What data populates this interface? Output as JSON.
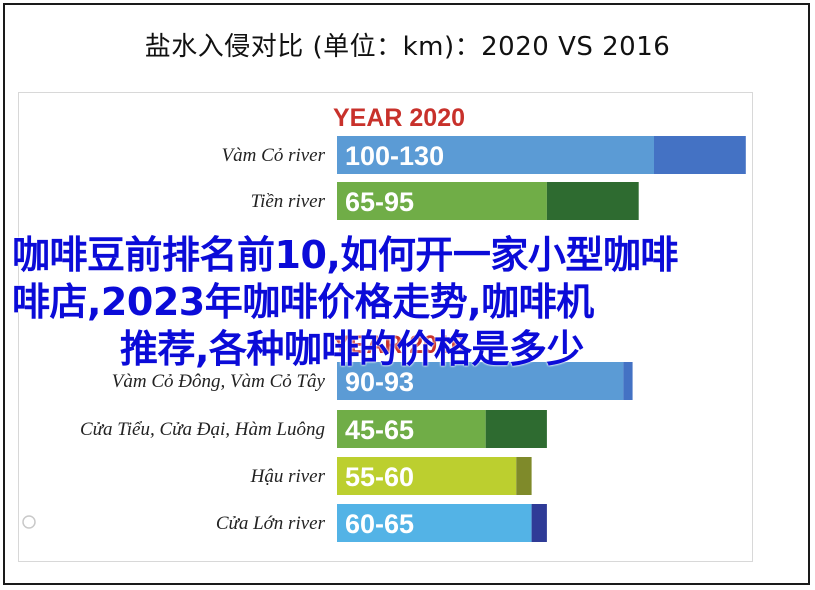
{
  "page_title": "盐水入侵对比 (单位：km)：2020 VS 2016",
  "overlay_lines": [
    "咖啡豆前排名前10,如何开一家小型咖啡",
    "啡店,2023年咖啡价格走势,咖啡机",
    "推荐,各种咖啡的价格是多少"
  ],
  "colors": {
    "year_title": "#c8312b",
    "blue": "#5b9bd5",
    "blue_dark": "#4472c4",
    "green": "#70ad47",
    "green_dark": "#2e6b30",
    "yellow": "#bccf2f",
    "yellow_dark": "#7f8a2a",
    "cyan": "#53b3e6",
    "navy": "#2f3b97",
    "overlay_text": "#0b0bd8"
  },
  "chart_data": [
    {
      "type": "bar",
      "orientation": "horizontal",
      "title": "YEAR 2020",
      "categories": [
        "Vàm Cỏ river",
        "Tiền river"
      ],
      "series": [
        {
          "range_labels": [
            "100-130",
            "65-95"
          ],
          "min": [
            100,
            65
          ],
          "max": [
            130,
            95
          ]
        }
      ],
      "bar_colors": [
        "#5b9bd5",
        "#70ad47"
      ],
      "extension_colors": [
        "#4472c4",
        "#2e6b30"
      ]
    },
    {
      "type": "bar",
      "orientation": "horizontal",
      "title": "YEAR 2016",
      "categories": [
        "Vàm Cỏ Đông, Vàm Cỏ Tây",
        "Cửa Tiểu, Cửa Đại, Hàm Luông",
        "Hậu river",
        "Cửa Lớn river"
      ],
      "series": [
        {
          "range_labels": [
            "90-93",
            "45-65",
            "55-60",
            "60-65"
          ],
          "min": [
            90,
            45,
            55,
            60
          ],
          "max": [
            93,
            65,
            60,
            65
          ]
        }
      ],
      "bar_colors": [
        "#5b9bd5",
        "#70ad47",
        "#bccf2f",
        "#53b3e6"
      ],
      "extension_colors": [
        "#4472c4",
        "#2e6b30",
        "#7f8a2a",
        "#2f3b97"
      ]
    }
  ]
}
